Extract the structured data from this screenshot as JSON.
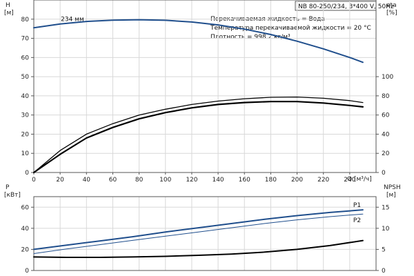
{
  "info": {
    "title": "NB 80-250/234, 3*400 V, 50Hz",
    "lines": [
      "Перекачиваемая жидкость = Вода",
      "Температура перекачиваемой жидкости = 20 °C",
      "Плотность = 998.2 кг/м³"
    ]
  },
  "colors": {
    "curve_blue": "#1f4e8c",
    "curve_black": "#000000",
    "grid": "#d8d8d8",
    "frame": "#555555"
  },
  "chart_data": [
    {
      "type": "line",
      "name": "performance",
      "x_label": "Q [м³/ч]",
      "xlim": [
        0,
        260
      ],
      "x_ticks": [
        0,
        20,
        40,
        60,
        80,
        100,
        120,
        140,
        160,
        180,
        200,
        220,
        240
      ],
      "left_axis": {
        "label_top": "H",
        "label_unit": "[м]",
        "lim": [
          0,
          90
        ],
        "ticks": [
          0,
          10,
          20,
          30,
          40,
          50,
          60,
          70,
          80
        ]
      },
      "right_axis": {
        "label_top": "eta",
        "label_unit": "[%]",
        "lim": [
          0,
          180
        ],
        "ticks": [
          0,
          20,
          40,
          60,
          80,
          100
        ]
      },
      "series": [
        {
          "axis": "left",
          "color": "#1f4e8c",
          "width": 2,
          "label": "234 мм",
          "x": [
            0,
            20,
            40,
            60,
            80,
            100,
            120,
            140,
            160,
            180,
            200,
            220,
            240,
            250
          ],
          "y": [
            75.5,
            77.5,
            78.8,
            79.5,
            79.7,
            79.4,
            78.5,
            77,
            74.8,
            72,
            68.5,
            64.5,
            60,
            57.5
          ]
        },
        {
          "axis": "right",
          "color": "#000000",
          "width": 1.3,
          "x": [
            0,
            20,
            40,
            60,
            80,
            100,
            120,
            140,
            160,
            180,
            200,
            220,
            240,
            250
          ],
          "y": [
            0,
            23,
            40,
            51,
            60,
            66,
            71,
            74.5,
            77,
            78.5,
            78.8,
            77.5,
            75,
            73
          ]
        },
        {
          "axis": "right",
          "color": "#000000",
          "width": 2.2,
          "x": [
            0,
            20,
            40,
            60,
            80,
            100,
            120,
            140,
            160,
            180,
            200,
            220,
            240,
            250
          ],
          "y": [
            0,
            19,
            36,
            47,
            56,
            62.5,
            67.5,
            71,
            73,
            74,
            74,
            72.5,
            70,
            68.5
          ]
        }
      ]
    },
    {
      "type": "line",
      "name": "power-npsh",
      "xlim": [
        0,
        260
      ],
      "left_axis": {
        "label_top": "P",
        "label_unit": "[кВт]",
        "lim": [
          0,
          70
        ],
        "ticks": [
          0,
          20,
          40,
          60
        ]
      },
      "right_axis": {
        "label_top": "NPSH",
        "label_unit": "[м]",
        "lim": [
          0,
          17.5
        ],
        "ticks": [
          0,
          5,
          10,
          15
        ]
      },
      "series": [
        {
          "axis": "left",
          "color": "#1f4e8c",
          "width": 2,
          "label": "P1",
          "x": [
            0,
            25,
            50,
            75,
            100,
            125,
            150,
            175,
            200,
            225,
            250
          ],
          "y": [
            20,
            24,
            28,
            32,
            36.5,
            40.5,
            44.5,
            48.5,
            52,
            55,
            57.5
          ]
        },
        {
          "axis": "left",
          "color": "#1f4e8c",
          "width": 1,
          "label": "P2",
          "x": [
            0,
            25,
            50,
            75,
            100,
            125,
            150,
            175,
            200,
            225,
            250
          ],
          "y": [
            16,
            20.5,
            24.5,
            28.5,
            32.5,
            36.5,
            40.5,
            44.5,
            48,
            51,
            53.5
          ]
        },
        {
          "axis": "right",
          "color": "#000000",
          "width": 2,
          "x": [
            0,
            25,
            50,
            75,
            100,
            125,
            150,
            175,
            200,
            225,
            250
          ],
          "y": [
            3.2,
            3.1,
            3.1,
            3.2,
            3.35,
            3.6,
            3.9,
            4.35,
            5,
            5.9,
            7.1
          ]
        }
      ]
    }
  ]
}
